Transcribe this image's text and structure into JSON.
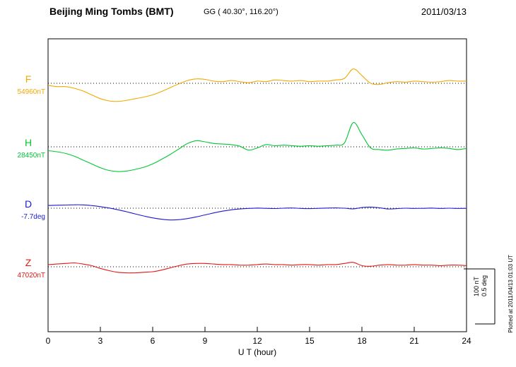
{
  "header": {
    "station_name": "Beijing Ming Tombs (BMT)",
    "geo_coords": "GG ( 40.30°, 116.20°)",
    "date": "2011/03/13"
  },
  "footer": {
    "plotted_note": "Plotted at 2011/04/13 01:03 UT"
  },
  "chart_data": {
    "type": "line",
    "title": "Beijing Ming Tombs (BMT) magnetogram 2011/03/13",
    "xlabel": "U T (hour)",
    "x_range": [
      0,
      24
    ],
    "x_step_hours": 0.5,
    "x_ticks": [
      0,
      3,
      6,
      9,
      12,
      15,
      18,
      21,
      24
    ],
    "grid": "dotted-baselines",
    "legend_position": "left-of-plot",
    "scale": {
      "nt_per_division": 100,
      "deg_per_division": 0.5
    },
    "scale_labels": {
      "nt": "100 nT",
      "deg": "0.5 deg"
    },
    "series": [
      {
        "name": "F",
        "baseline_label": "54960nT",
        "baseline_value": 54960,
        "unit": "nT",
        "color": "#f2a900",
        "offsets": [
          -4,
          -6,
          -6,
          -9,
          -14,
          -21,
          -28,
          -32,
          -33,
          -31,
          -28,
          -25,
          -21,
          -15,
          -8,
          -1,
          5,
          8,
          7,
          4,
          3,
          5,
          3,
          1,
          4,
          3,
          6,
          5,
          4,
          5,
          3,
          4,
          4,
          6,
          9,
          26,
          14,
          0,
          -2,
          1,
          3,
          2,
          4,
          3,
          2,
          3,
          5,
          4,
          4
        ]
      },
      {
        "name": "H",
        "baseline_label": "28450nT",
        "baseline_value": 28450,
        "unit": "nT",
        "color": "#00c832",
        "offsets": [
          -7,
          -9,
          -12,
          -17,
          -24,
          -31,
          -38,
          -43,
          -45,
          -44,
          -41,
          -37,
          -31,
          -23,
          -14,
          -4,
          6,
          11,
          9,
          6,
          5,
          4,
          1,
          -6,
          -2,
          4,
          2,
          3,
          2,
          1,
          2,
          1,
          2,
          3,
          7,
          44,
          22,
          -2,
          -5,
          -6,
          -4,
          -3,
          -2,
          -4,
          -3,
          -2,
          -3,
          -5,
          -3
        ]
      },
      {
        "name": "D",
        "baseline_label": "-7.7deg",
        "baseline_value": -7.7,
        "unit": "deg",
        "color": "#1a1ad2",
        "offsets": [
          0.025,
          0.027,
          0.029,
          0.031,
          0.03,
          0.024,
          0.014,
          0.002,
          -0.014,
          -0.032,
          -0.052,
          -0.071,
          -0.088,
          -0.1,
          -0.107,
          -0.104,
          -0.094,
          -0.079,
          -0.061,
          -0.043,
          -0.027,
          -0.015,
          -0.007,
          -0.002,
          0.001,
          -0.001,
          -0.003,
          0.0,
          0.002,
          -0.002,
          -0.004,
          -0.001,
          0.001,
          0.003,
          0.0,
          -0.006,
          0.006,
          0.01,
          0.004,
          -0.007,
          -0.004,
          0.0,
          -0.002,
          -0.001,
          0.001,
          -0.002,
          0.0,
          -0.002,
          -0.001
        ]
      },
      {
        "name": "Z",
        "baseline_label": "47020nT",
        "baseline_value": 47020,
        "unit": "nT",
        "color": "#e61414",
        "offsets": [
          4,
          5,
          6,
          7,
          5,
          2,
          -3,
          -7,
          -10,
          -11,
          -11,
          -10,
          -9,
          -6,
          -2,
          2,
          5,
          6,
          6,
          5,
          4,
          4,
          3,
          3,
          4,
          5,
          4,
          4,
          3,
          4,
          4,
          3,
          4,
          4,
          6,
          8,
          2,
          1,
          3,
          4,
          3,
          3,
          4,
          3,
          3,
          2,
          3,
          3,
          2
        ]
      }
    ]
  }
}
